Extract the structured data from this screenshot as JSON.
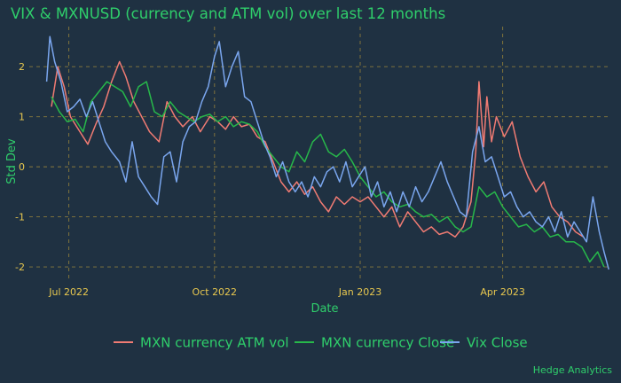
{
  "colors": {
    "background": "#1f3142",
    "text": "#2fce6b",
    "tick_text": "#e8c84f",
    "grid": "#8a7a3c"
  },
  "caption": "Hedge Analytics",
  "chart_data": {
    "type": "line",
    "title": "VIX & MXNUSD (currency and ATM vol) over last 12 months",
    "xlabel": "Date",
    "ylabel": "Std Dev",
    "x_ticks": [
      {
        "date": "2022-07-01",
        "label": "Jul 2022"
      },
      {
        "date": "2022-10-01",
        "label": "Oct 2022"
      },
      {
        "date": "2023-01-01",
        "label": "Jan 2023"
      },
      {
        "date": "2023-04-01",
        "label": "Apr 2023"
      }
    ],
    "y_ticks": [
      -2,
      -1,
      0,
      1,
      2
    ],
    "xlim": [
      "2022-06-06",
      "2023-06-08"
    ],
    "ylim": [
      -2.3,
      2.8
    ],
    "grid": true,
    "legend_position": "bottom",
    "series": [
      {
        "name": "MXN currency ATM vol",
        "color": "#f07b73",
        "points": [
          [
            "2022-06-20",
            1.2
          ],
          [
            "2022-06-24",
            2.0
          ],
          [
            "2022-06-28",
            1.6
          ],
          [
            "2022-07-02",
            1.0
          ],
          [
            "2022-07-08",
            0.7
          ],
          [
            "2022-07-13",
            0.45
          ],
          [
            "2022-07-18",
            0.85
          ],
          [
            "2022-07-23",
            1.2
          ],
          [
            "2022-07-28",
            1.7
          ],
          [
            "2022-08-02",
            2.1
          ],
          [
            "2022-08-06",
            1.8
          ],
          [
            "2022-08-11",
            1.3
          ],
          [
            "2022-08-16",
            1.0
          ],
          [
            "2022-08-21",
            0.7
          ],
          [
            "2022-08-27",
            0.5
          ],
          [
            "2022-09-01",
            1.3
          ],
          [
            "2022-09-06",
            1.0
          ],
          [
            "2022-09-11",
            0.8
          ],
          [
            "2022-09-17",
            1.0
          ],
          [
            "2022-09-22",
            0.7
          ],
          [
            "2022-09-28",
            1.0
          ],
          [
            "2022-10-03",
            0.9
          ],
          [
            "2022-10-08",
            0.75
          ],
          [
            "2022-10-13",
            1.0
          ],
          [
            "2022-10-18",
            0.8
          ],
          [
            "2022-10-23",
            0.85
          ],
          [
            "2022-10-28",
            0.6
          ],
          [
            "2022-11-02",
            0.5
          ],
          [
            "2022-11-07",
            0.1
          ],
          [
            "2022-11-12",
            -0.3
          ],
          [
            "2022-11-17",
            -0.5
          ],
          [
            "2022-11-22",
            -0.3
          ],
          [
            "2022-11-27",
            -0.55
          ],
          [
            "2022-12-02",
            -0.4
          ],
          [
            "2022-12-07",
            -0.7
          ],
          [
            "2022-12-12",
            -0.9
          ],
          [
            "2022-12-17",
            -0.6
          ],
          [
            "2022-12-22",
            -0.75
          ],
          [
            "2022-12-27",
            -0.6
          ],
          [
            "2023-01-01",
            -0.7
          ],
          [
            "2023-01-06",
            -0.6
          ],
          [
            "2023-01-11",
            -0.8
          ],
          [
            "2023-01-16",
            -1.0
          ],
          [
            "2023-01-21",
            -0.8
          ],
          [
            "2023-01-26",
            -1.2
          ],
          [
            "2023-01-31",
            -0.9
          ],
          [
            "2023-02-05",
            -1.1
          ],
          [
            "2023-02-10",
            -1.3
          ],
          [
            "2023-02-15",
            -1.2
          ],
          [
            "2023-02-20",
            -1.35
          ],
          [
            "2023-02-25",
            -1.3
          ],
          [
            "2023-03-02",
            -1.4
          ],
          [
            "2023-03-07",
            -1.2
          ],
          [
            "2023-03-12",
            -0.7
          ],
          [
            "2023-03-15",
            0.3
          ],
          [
            "2023-03-17",
            1.7
          ],
          [
            "2023-03-20",
            0.4
          ],
          [
            "2023-03-22",
            1.4
          ],
          [
            "2023-03-25",
            0.5
          ],
          [
            "2023-03-28",
            1.0
          ],
          [
            "2023-04-02",
            0.6
          ],
          [
            "2023-04-07",
            0.9
          ],
          [
            "2023-04-12",
            0.2
          ],
          [
            "2023-04-17",
            -0.2
          ],
          [
            "2023-04-22",
            -0.5
          ],
          [
            "2023-04-27",
            -0.3
          ],
          [
            "2023-05-02",
            -0.8
          ],
          [
            "2023-05-07",
            -1.0
          ],
          [
            "2023-05-12",
            -1.1
          ],
          [
            "2023-05-17",
            -1.3
          ],
          [
            "2023-05-22",
            -1.4
          ]
        ]
      },
      {
        "name": "MXN currency Close",
        "color": "#27b84a",
        "points": [
          [
            "2022-06-20",
            1.4
          ],
          [
            "2022-06-25",
            1.1
          ],
          [
            "2022-06-30",
            0.9
          ],
          [
            "2022-07-05",
            0.95
          ],
          [
            "2022-07-10",
            0.7
          ],
          [
            "2022-07-15",
            1.3
          ],
          [
            "2022-07-20",
            1.5
          ],
          [
            "2022-07-25",
            1.7
          ],
          [
            "2022-07-30",
            1.6
          ],
          [
            "2022-08-04",
            1.5
          ],
          [
            "2022-08-09",
            1.2
          ],
          [
            "2022-08-14",
            1.6
          ],
          [
            "2022-08-19",
            1.7
          ],
          [
            "2022-08-24",
            1.1
          ],
          [
            "2022-08-29",
            1.0
          ],
          [
            "2022-09-03",
            1.3
          ],
          [
            "2022-09-08",
            1.1
          ],
          [
            "2022-09-13",
            1.0
          ],
          [
            "2022-09-18",
            0.9
          ],
          [
            "2022-09-23",
            1.0
          ],
          [
            "2022-09-28",
            1.05
          ],
          [
            "2022-10-03",
            0.9
          ],
          [
            "2022-10-08",
            1.0
          ],
          [
            "2022-10-13",
            0.8
          ],
          [
            "2022-10-18",
            0.9
          ],
          [
            "2022-10-23",
            0.85
          ],
          [
            "2022-10-28",
            0.7
          ],
          [
            "2022-11-02",
            0.4
          ],
          [
            "2022-11-07",
            0.2
          ],
          [
            "2022-11-12",
            0.0
          ],
          [
            "2022-11-17",
            -0.1
          ],
          [
            "2022-11-22",
            0.3
          ],
          [
            "2022-11-27",
            0.1
          ],
          [
            "2022-12-02",
            0.5
          ],
          [
            "2022-12-07",
            0.65
          ],
          [
            "2022-12-12",
            0.3
          ],
          [
            "2022-12-17",
            0.2
          ],
          [
            "2022-12-22",
            0.35
          ],
          [
            "2022-12-27",
            0.1
          ],
          [
            "2023-01-01",
            -0.2
          ],
          [
            "2023-01-06",
            -0.4
          ],
          [
            "2023-01-11",
            -0.6
          ],
          [
            "2023-01-16",
            -0.5
          ],
          [
            "2023-01-21",
            -0.7
          ],
          [
            "2023-01-26",
            -0.8
          ],
          [
            "2023-01-31",
            -0.75
          ],
          [
            "2023-02-05",
            -0.9
          ],
          [
            "2023-02-10",
            -1.0
          ],
          [
            "2023-02-15",
            -0.95
          ],
          [
            "2023-02-20",
            -1.1
          ],
          [
            "2023-02-25",
            -1.0
          ],
          [
            "2023-03-02",
            -1.2
          ],
          [
            "2023-03-07",
            -1.3
          ],
          [
            "2023-03-12",
            -1.2
          ],
          [
            "2023-03-17",
            -0.4
          ],
          [
            "2023-03-22",
            -0.6
          ],
          [
            "2023-03-27",
            -0.5
          ],
          [
            "2023-04-01",
            -0.8
          ],
          [
            "2023-04-06",
            -1.0
          ],
          [
            "2023-04-11",
            -1.2
          ],
          [
            "2023-04-16",
            -1.15
          ],
          [
            "2023-04-21",
            -1.3
          ],
          [
            "2023-04-26",
            -1.2
          ],
          [
            "2023-05-01",
            -1.4
          ],
          [
            "2023-05-06",
            -1.35
          ],
          [
            "2023-05-11",
            -1.5
          ],
          [
            "2023-05-16",
            -1.5
          ],
          [
            "2023-05-21",
            -1.6
          ],
          [
            "2023-05-26",
            -1.9
          ],
          [
            "2023-05-31",
            -1.7
          ],
          [
            "2023-06-04",
            -2.0
          ]
        ]
      },
      {
        "name": "Vix Close",
        "color": "#7aa6ee",
        "points": [
          [
            "2022-06-17",
            1.7
          ],
          [
            "2022-06-19",
            2.6
          ],
          [
            "2022-06-22",
            2.1
          ],
          [
            "2022-06-26",
            1.7
          ],
          [
            "2022-06-30",
            1.1
          ],
          [
            "2022-07-04",
            1.2
          ],
          [
            "2022-07-08",
            1.35
          ],
          [
            "2022-07-12",
            1.0
          ],
          [
            "2022-07-16",
            1.3
          ],
          [
            "2022-07-20",
            0.9
          ],
          [
            "2022-07-24",
            0.5
          ],
          [
            "2022-07-28",
            0.3
          ],
          [
            "2022-08-02",
            0.1
          ],
          [
            "2022-08-06",
            -0.3
          ],
          [
            "2022-08-10",
            0.5
          ],
          [
            "2022-08-14",
            -0.2
          ],
          [
            "2022-08-18",
            -0.4
          ],
          [
            "2022-08-22",
            -0.6
          ],
          [
            "2022-08-26",
            -0.75
          ],
          [
            "2022-08-30",
            0.2
          ],
          [
            "2022-09-03",
            0.3
          ],
          [
            "2022-09-07",
            -0.3
          ],
          [
            "2022-09-11",
            0.5
          ],
          [
            "2022-09-15",
            0.8
          ],
          [
            "2022-09-19",
            0.9
          ],
          [
            "2022-09-23",
            1.3
          ],
          [
            "2022-09-27",
            1.6
          ],
          [
            "2022-10-01",
            2.2
          ],
          [
            "2022-10-04",
            2.5
          ],
          [
            "2022-10-08",
            1.6
          ],
          [
            "2022-10-12",
            2.0
          ],
          [
            "2022-10-16",
            2.3
          ],
          [
            "2022-10-20",
            1.4
          ],
          [
            "2022-10-24",
            1.3
          ],
          [
            "2022-10-28",
            0.9
          ],
          [
            "2022-11-01",
            0.5
          ],
          [
            "2022-11-05",
            0.2
          ],
          [
            "2022-11-09",
            -0.2
          ],
          [
            "2022-11-13",
            0.1
          ],
          [
            "2022-11-17",
            -0.3
          ],
          [
            "2022-11-21",
            -0.5
          ],
          [
            "2022-11-25",
            -0.3
          ],
          [
            "2022-11-29",
            -0.6
          ],
          [
            "2022-12-03",
            -0.2
          ],
          [
            "2022-12-07",
            -0.4
          ],
          [
            "2022-12-11",
            -0.1
          ],
          [
            "2022-12-15",
            0.0
          ],
          [
            "2022-12-19",
            -0.3
          ],
          [
            "2022-12-23",
            0.1
          ],
          [
            "2022-12-27",
            -0.4
          ],
          [
            "2022-12-31",
            -0.2
          ],
          [
            "2023-01-04",
            0.0
          ],
          [
            "2023-01-08",
            -0.6
          ],
          [
            "2023-01-12",
            -0.3
          ],
          [
            "2023-01-16",
            -0.8
          ],
          [
            "2023-01-20",
            -0.5
          ],
          [
            "2023-01-24",
            -0.9
          ],
          [
            "2023-01-28",
            -0.5
          ],
          [
            "2023-02-01",
            -0.8
          ],
          [
            "2023-02-05",
            -0.4
          ],
          [
            "2023-02-09",
            -0.7
          ],
          [
            "2023-02-13",
            -0.5
          ],
          [
            "2023-02-17",
            -0.2
          ],
          [
            "2023-02-21",
            0.1
          ],
          [
            "2023-02-25",
            -0.3
          ],
          [
            "2023-03-01",
            -0.6
          ],
          [
            "2023-03-05",
            -0.9
          ],
          [
            "2023-03-09",
            -1.0
          ],
          [
            "2023-03-13",
            0.3
          ],
          [
            "2023-03-17",
            0.8
          ],
          [
            "2023-03-21",
            0.1
          ],
          [
            "2023-03-25",
            0.2
          ],
          [
            "2023-03-29",
            -0.2
          ],
          [
            "2023-04-02",
            -0.6
          ],
          [
            "2023-04-06",
            -0.5
          ],
          [
            "2023-04-10",
            -0.8
          ],
          [
            "2023-04-14",
            -1.0
          ],
          [
            "2023-04-18",
            -0.9
          ],
          [
            "2023-04-22",
            -1.1
          ],
          [
            "2023-04-26",
            -1.2
          ],
          [
            "2023-04-30",
            -1.0
          ],
          [
            "2023-05-04",
            -1.3
          ],
          [
            "2023-05-08",
            -0.9
          ],
          [
            "2023-05-12",
            -1.4
          ],
          [
            "2023-05-16",
            -1.1
          ],
          [
            "2023-05-20",
            -1.3
          ],
          [
            "2023-05-24",
            -1.5
          ],
          [
            "2023-05-28",
            -0.6
          ],
          [
            "2023-06-01",
            -1.3
          ],
          [
            "2023-06-04",
            -1.7
          ],
          [
            "2023-06-07",
            -2.05
          ]
        ]
      }
    ]
  }
}
